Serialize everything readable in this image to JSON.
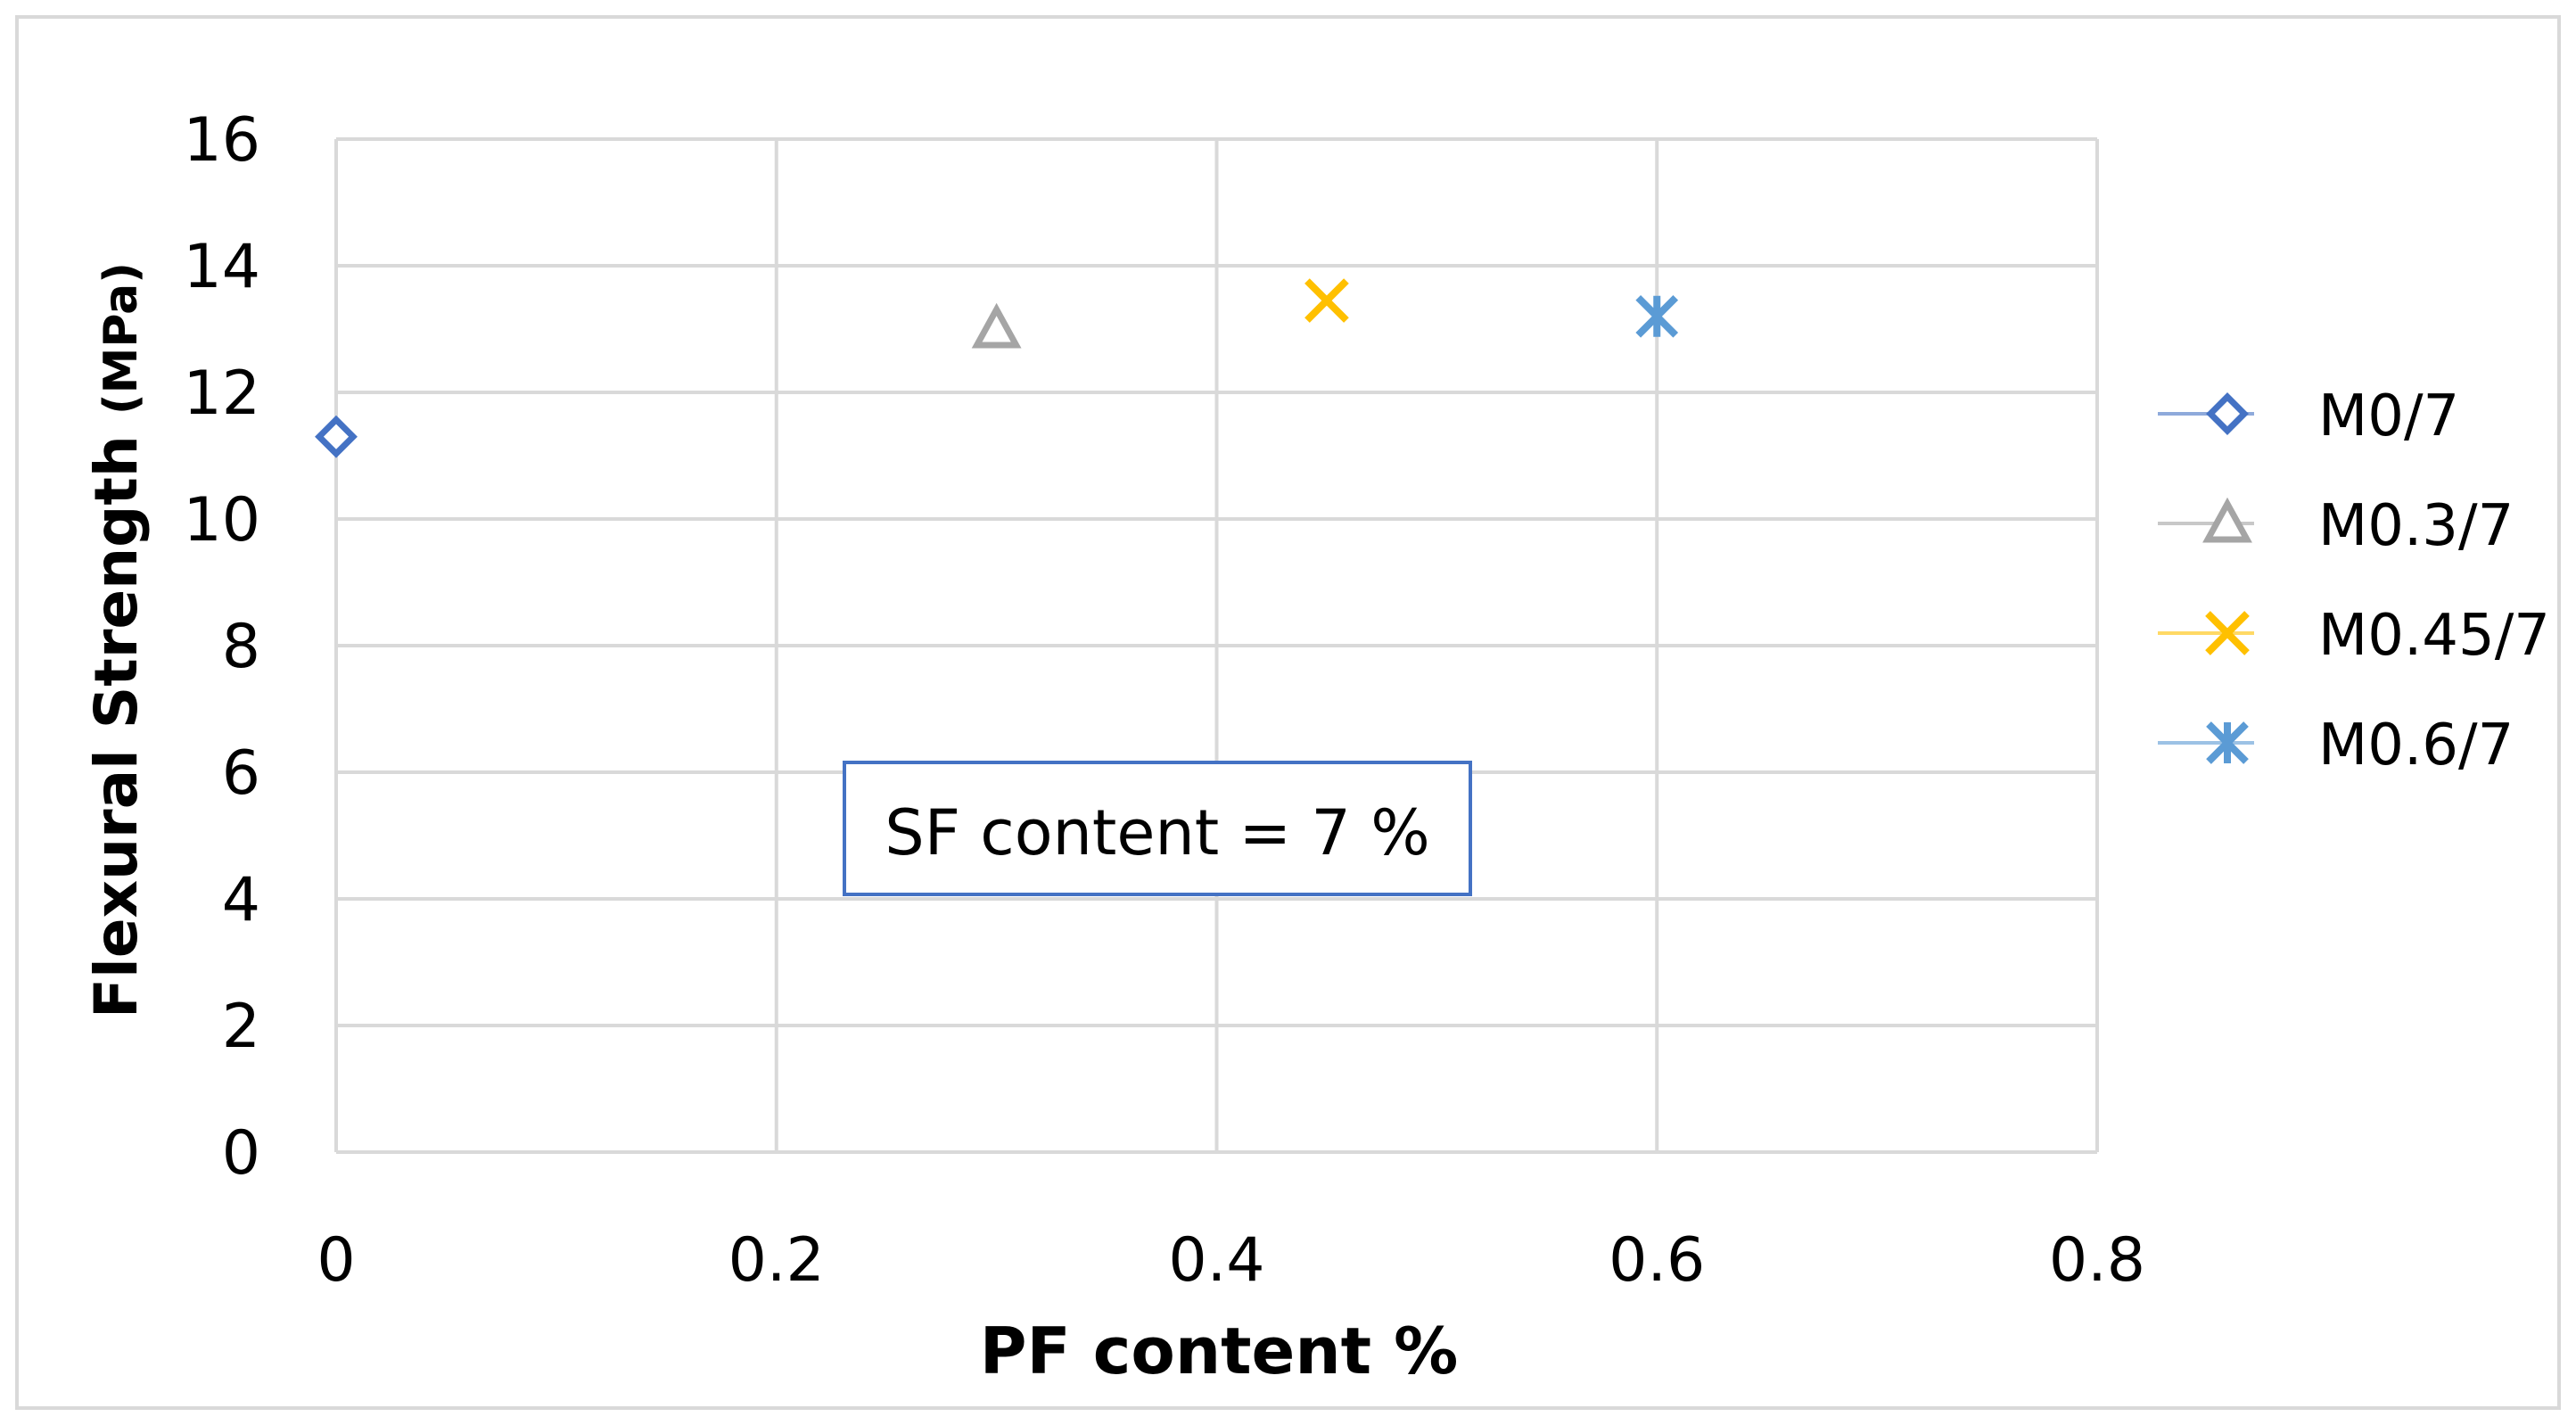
{
  "chart_data": {
    "type": "scatter",
    "xlabel": "PF content %",
    "ylabel_main": "Flexural Strength ",
    "ylabel_unit": "(MPa)",
    "xlim": [
      0,
      0.8
    ],
    "ylim": [
      0,
      16
    ],
    "x_ticks": [
      0,
      0.2,
      0.4,
      0.6,
      0.8
    ],
    "x_tick_labels": [
      "0",
      "0.2",
      "0.4",
      "0.6",
      "0.8"
    ],
    "y_ticks": [
      0,
      2,
      4,
      6,
      8,
      10,
      12,
      14,
      16
    ],
    "y_tick_labels": [
      "0",
      "2",
      "4",
      "6",
      "8",
      "10",
      "12",
      "14",
      "16"
    ],
    "grid": true,
    "legend_position": "right",
    "annotation": "SF content = 7 %",
    "series": [
      {
        "name": "M0/7",
        "marker": "diamond",
        "color": "#4472C4",
        "points": [
          {
            "x": 0,
            "y": 11.3
          }
        ]
      },
      {
        "name": "M0.3/7",
        "marker": "triangle",
        "color": "#A5A5A5",
        "points": [
          {
            "x": 0.3,
            "y": 13.0
          }
        ]
      },
      {
        "name": "M0.45/7",
        "marker": "x",
        "color": "#FFC000",
        "points": [
          {
            "x": 0.45,
            "y": 13.45
          }
        ]
      },
      {
        "name": "M0.6/7",
        "marker": "star",
        "color": "#5B9BD5",
        "points": [
          {
            "x": 0.6,
            "y": 13.2
          }
        ]
      }
    ]
  }
}
